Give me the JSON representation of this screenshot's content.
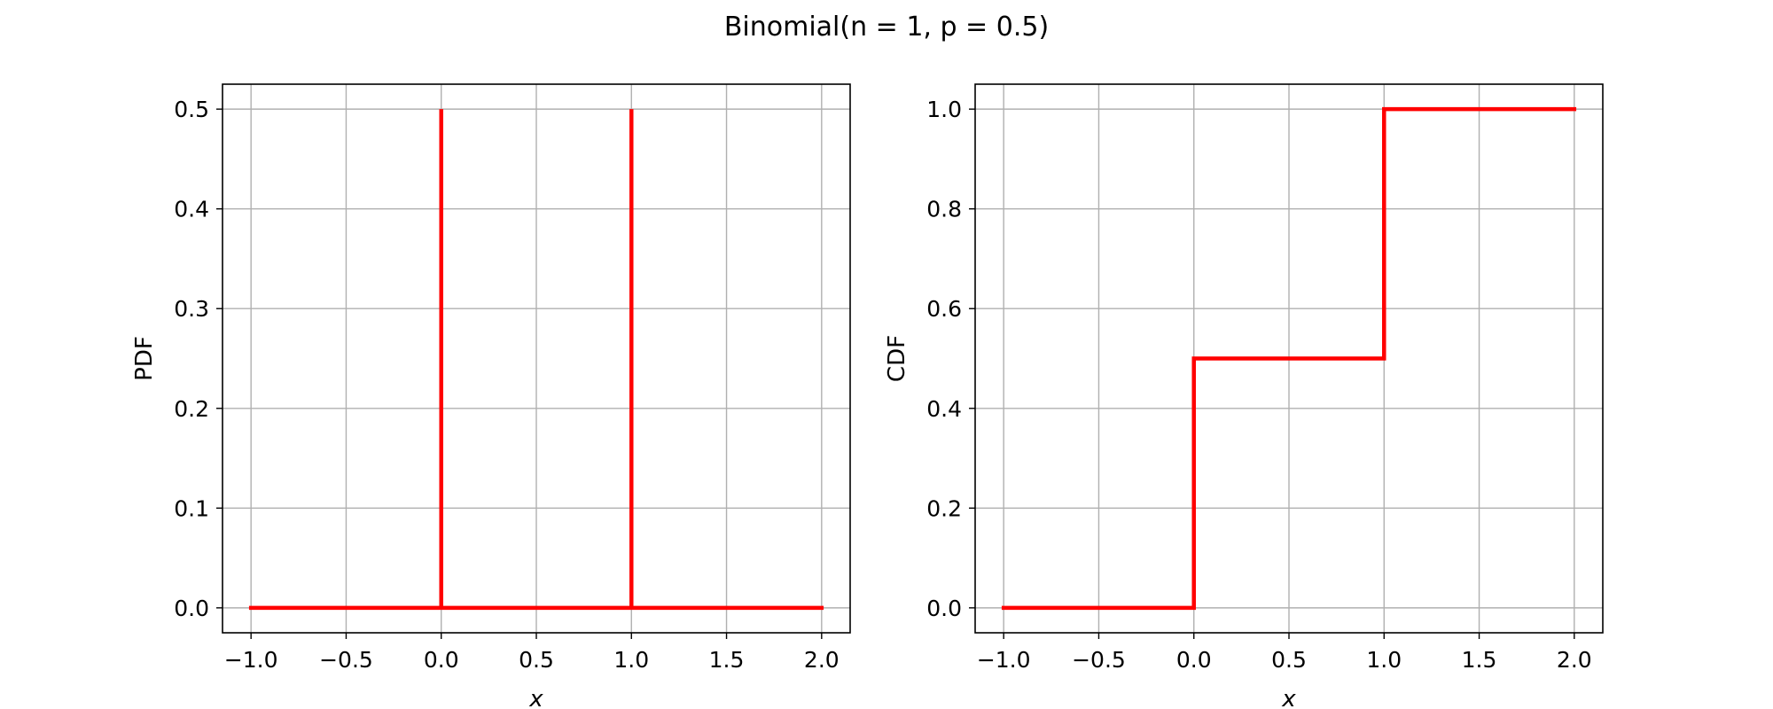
{
  "figure": {
    "suptitle": "Binomial(n = 1, p = 0.5)"
  },
  "colors": {
    "line": "#ff0000",
    "grid": "#b0b0b0",
    "axes": "#000000"
  },
  "chart_data": [
    {
      "type": "line",
      "panel": "left",
      "xlabel": "x",
      "ylabel": "PDF",
      "xlim": [
        -1.15,
        2.15
      ],
      "ylim": [
        -0.025,
        0.525
      ],
      "xticks": [
        -1.0,
        -0.5,
        0.0,
        0.5,
        1.0,
        1.5,
        2.0
      ],
      "xtick_labels": [
        "−1.0",
        "−0.5",
        "0.0",
        "0.5",
        "1.0",
        "1.5",
        "2.0"
      ],
      "yticks": [
        0.0,
        0.1,
        0.2,
        0.3,
        0.4,
        0.5
      ],
      "ytick_labels": [
        "0.0",
        "0.1",
        "0.2",
        "0.3",
        "0.4",
        "0.5"
      ],
      "grid": true,
      "series": [
        {
          "color": "#ff0000",
          "x": [
            -1.0,
            0.0,
            0.0,
            0.0,
            1.0,
            1.0,
            1.0,
            2.0
          ],
          "y": [
            0.0,
            0.0,
            0.5,
            0.0,
            0.0,
            0.5,
            0.0,
            0.0
          ]
        }
      ]
    },
    {
      "type": "line",
      "panel": "right",
      "xlabel": "x",
      "ylabel": "CDF",
      "xlim": [
        -1.15,
        2.15
      ],
      "ylim": [
        -0.05,
        1.05
      ],
      "xticks": [
        -1.0,
        -0.5,
        0.0,
        0.5,
        1.0,
        1.5,
        2.0
      ],
      "xtick_labels": [
        "−1.0",
        "−0.5",
        "0.0",
        "0.5",
        "1.0",
        "1.5",
        "2.0"
      ],
      "yticks": [
        0.0,
        0.2,
        0.4,
        0.6,
        0.8,
        1.0
      ],
      "ytick_labels": [
        "0.0",
        "0.2",
        "0.4",
        "0.6",
        "0.8",
        "1.0"
      ],
      "grid": true,
      "series": [
        {
          "color": "#ff0000",
          "x": [
            -1.0,
            0.0,
            0.0,
            1.0,
            1.0,
            2.0
          ],
          "y": [
            0.0,
            0.0,
            0.5,
            0.5,
            1.0,
            1.0
          ]
        }
      ]
    }
  ]
}
